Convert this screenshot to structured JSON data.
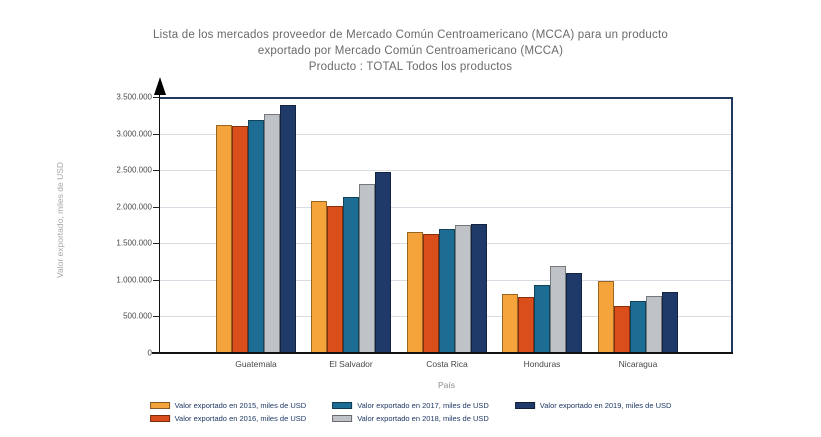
{
  "title": {
    "line1": "Lista de los mercados proveedor de Mercado Común Centroamericano (MCCA) para un producto",
    "line2": "exportado por Mercado Común Centroamericano (MCCA)",
    "line3": "Producto : TOTAL Todos los productos"
  },
  "chart_data": {
    "type": "bar",
    "categories": [
      "Guatemala",
      "El Salvador",
      "Costa Rica",
      "Honduras",
      "Nicaragua"
    ],
    "series": [
      {
        "name": "Valor exportado en 2015, miles de USD",
        "color": "#F5A43C",
        "values": [
          3120000,
          2080000,
          1660000,
          805000,
          980000
        ]
      },
      {
        "name": "Valor exportado en 2016, miles de USD",
        "color": "#D94E1B",
        "values": [
          3105000,
          2010000,
          1625000,
          770000,
          640000
        ]
      },
      {
        "name": "Valor exportado en 2017, miles de USD",
        "color": "#1D6C94",
        "values": [
          3190000,
          2135000,
          1700000,
          930000,
          710000
        ]
      },
      {
        "name": "Valor exportado en 2018, miles de USD",
        "color": "#BFC3C7",
        "values": [
          3270000,
          2310000,
          1745000,
          1190000,
          780000
        ]
      },
      {
        "name": "Valor exportado en 2019, miles de USD",
        "color": "#1F3A68",
        "values": [
          3395000,
          2480000,
          1760000,
          1090000,
          840000
        ]
      }
    ],
    "xlabel": "País",
    "ylabel": "Valor exportado, miles de USD",
    "ylim": [
      0,
      3500000
    ],
    "ytick_step": 500000,
    "ytick_labels": [
      "0",
      "500.000",
      "1.000.000",
      "1.500.000",
      "2.000.000",
      "2.500.000",
      "3.000.000",
      "3.500.000"
    ],
    "grid": true,
    "legend_position": "bottom"
  }
}
